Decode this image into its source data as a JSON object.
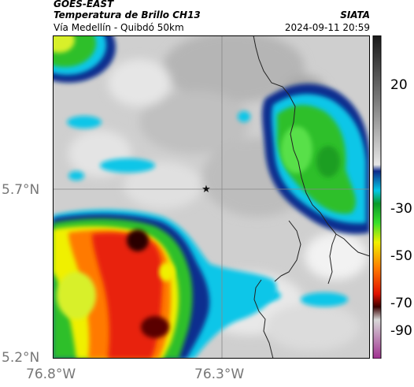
{
  "header": {
    "satellite": "GOES-EAST",
    "product": "Temperatura de Brillo CH13",
    "subtitle": "Vía Medellín - Quibdó 50km",
    "brand": "SIATA",
    "timestamp": "2024-09-11 20:59"
  },
  "axes": {
    "y_ticks": [
      "5.7°N",
      "5.2°N"
    ],
    "x_ticks": [
      "76.8°W",
      "76.3°W"
    ]
  },
  "colorbar": {
    "ticks": [
      "20",
      "-30",
      "-50",
      "-70",
      "-90"
    ],
    "stops": [
      "#1a1a1a",
      "#7a7a7a",
      "#e6e6e6",
      "#0d2a8a",
      "#00c8e6",
      "#0a9a2a",
      "#39e02a",
      "#f0f000",
      "#ff7a00",
      "#e01000",
      "#3a0000",
      "#d8d8d8",
      "#a03090"
    ]
  },
  "map": {
    "marker": "star",
    "colors": {
      "cold_red": "#e8220a",
      "dark_core": "#2a0000",
      "green": "#2fbf2a",
      "cyan": "#10c6e8",
      "blue": "#0a2f8f",
      "background_gray": "#c8c8c8"
    }
  }
}
